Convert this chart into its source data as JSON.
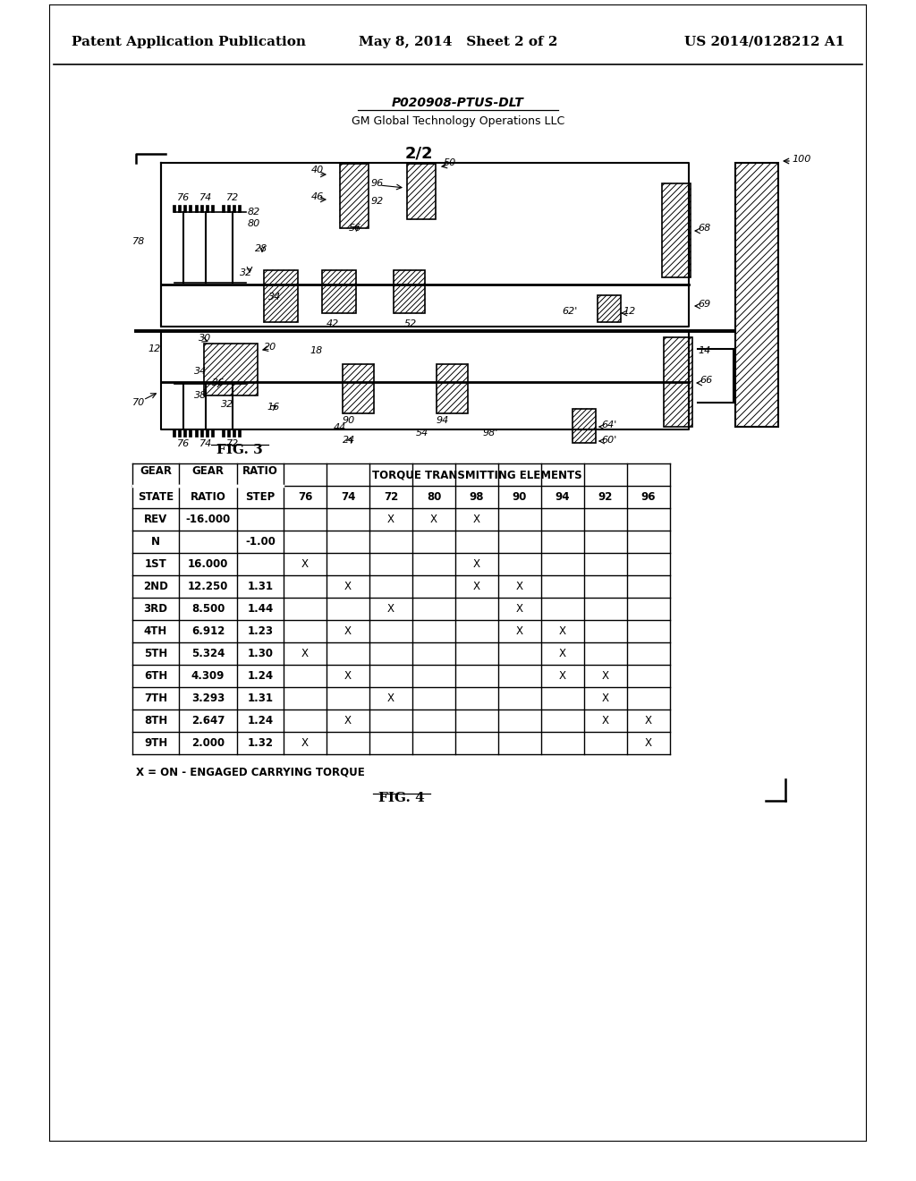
{
  "header_left": "Patent Application Publication",
  "header_center": "May 8, 2014   Sheet 2 of 2",
  "header_right": "US 2014/0128212 A1",
  "title_bold": "P020908-PTUS-DLT",
  "title_sub": "GM Global Technology Operations LLC",
  "fig3_label": "FIG. 3",
  "fig4_label": "FIG. 4",
  "fig_num": "2/2",
  "table_col_labels": [
    "76",
    "74",
    "72",
    "80",
    "98",
    "90",
    "94",
    "92",
    "96"
  ],
  "table_data": [
    [
      "REV",
      "-16.000",
      "",
      "",
      "",
      "X",
      "X",
      "X",
      "",
      "",
      "",
      ""
    ],
    [
      "N",
      "",
      "-1.00",
      "",
      "",
      "",
      "",
      "",
      "",
      "",
      "",
      ""
    ],
    [
      "1ST",
      "16.000",
      "",
      "X",
      "",
      "",
      "",
      "X",
      "",
      "",
      "",
      ""
    ],
    [
      "2ND",
      "12.250",
      "1.31",
      "",
      "X",
      "",
      "",
      "X",
      "X",
      "",
      "",
      ""
    ],
    [
      "3RD",
      "8.500",
      "1.44",
      "",
      "",
      "X",
      "",
      "",
      "X",
      "",
      "",
      ""
    ],
    [
      "4TH",
      "6.912",
      "1.23",
      "",
      "X",
      "",
      "",
      "",
      "X",
      "X",
      "",
      ""
    ],
    [
      "5TH",
      "5.324",
      "1.30",
      "X",
      "",
      "",
      "",
      "",
      "",
      "X",
      "",
      ""
    ],
    [
      "6TH",
      "4.309",
      "1.24",
      "",
      "X",
      "",
      "",
      "",
      "",
      "X",
      "X",
      ""
    ],
    [
      "7TH",
      "3.293",
      "1.31",
      "",
      "",
      "X",
      "",
      "",
      "",
      "",
      "X",
      ""
    ],
    [
      "8TH",
      "2.647",
      "1.24",
      "",
      "X",
      "",
      "",
      "",
      "",
      "",
      "X",
      "X"
    ],
    [
      "9TH",
      "2.000",
      "1.32",
      "X",
      "",
      "",
      "",
      "",
      "",
      "",
      "",
      "X"
    ]
  ],
  "table_note": "X = ON - ENGAGED CARRYING TORQUE",
  "bg_color": "#ffffff"
}
